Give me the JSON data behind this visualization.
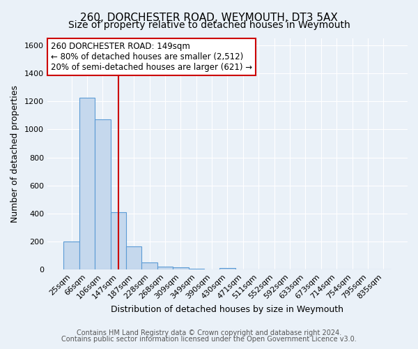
{
  "title": "260, DORCHESTER ROAD, WEYMOUTH, DT3 5AX",
  "subtitle": "Size of property relative to detached houses in Weymouth",
  "xlabel": "Distribution of detached houses by size in Weymouth",
  "ylabel": "Number of detached properties",
  "footnote1": "Contains HM Land Registry data © Crown copyright and database right 2024.",
  "footnote2": "Contains public sector information licensed under the Open Government Licence v3.0.",
  "categories": [
    "25sqm",
    "66sqm",
    "106sqm",
    "147sqm",
    "187sqm",
    "228sqm",
    "268sqm",
    "309sqm",
    "349sqm",
    "390sqm",
    "430sqm",
    "471sqm",
    "511sqm",
    "552sqm",
    "592sqm",
    "633sqm",
    "673sqm",
    "714sqm",
    "754sqm",
    "795sqm",
    "835sqm"
  ],
  "values": [
    200,
    1225,
    1070,
    410,
    165,
    52,
    22,
    14,
    8,
    0,
    10,
    0,
    0,
    0,
    0,
    0,
    0,
    0,
    0,
    0,
    0
  ],
  "bar_color": "#c5d8ed",
  "bar_edge_color": "#5b9bd5",
  "red_line_x": 3,
  "annotation_line1": "260 DORCHESTER ROAD: 149sqm",
  "annotation_line2": "← 80% of detached houses are smaller (2,512)",
  "annotation_line3": "20% of semi-detached houses are larger (621) →",
  "annotation_box_color": "#ffffff",
  "annotation_border_color": "#cc0000",
  "ylim": [
    0,
    1650
  ],
  "yticks": [
    0,
    200,
    400,
    600,
    800,
    1000,
    1200,
    1400,
    1600
  ],
  "background_color": "#eaf1f8",
  "grid_color": "#ffffff",
  "title_fontsize": 11,
  "subtitle_fontsize": 10,
  "axis_label_fontsize": 9,
  "tick_fontsize": 8,
  "annotation_fontsize": 8.5
}
